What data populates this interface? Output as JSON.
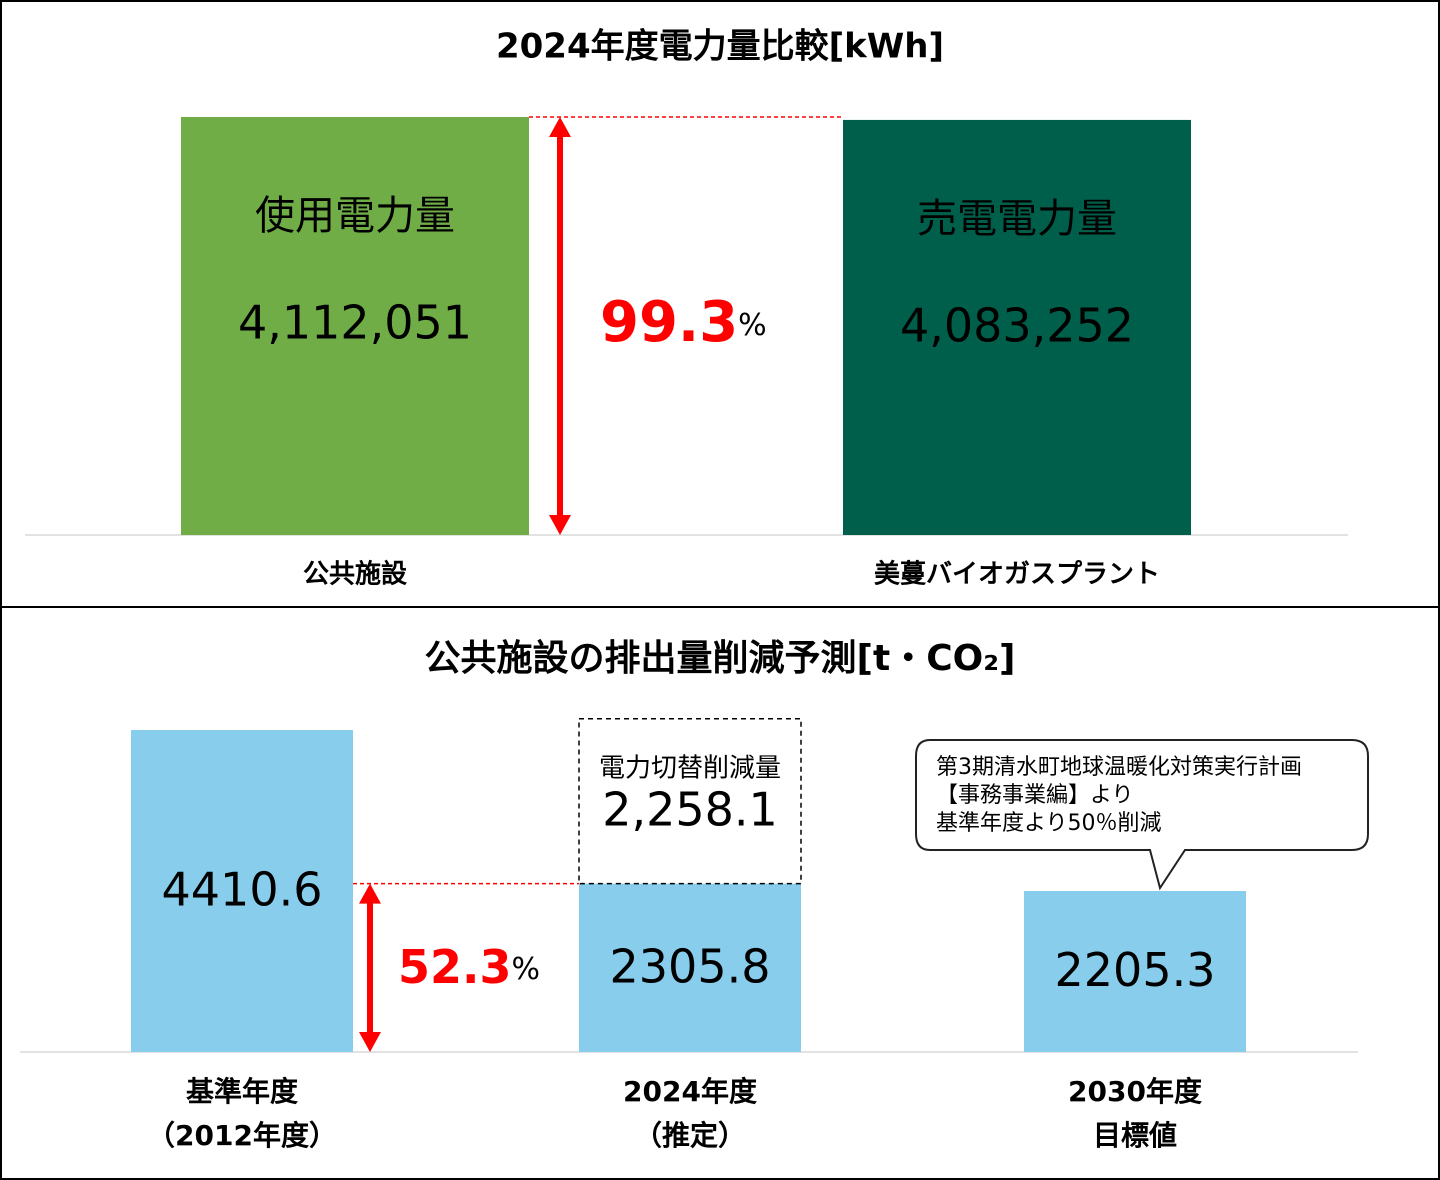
{
  "chart_data": [
    {
      "type": "bar",
      "title": "2024年度電力量比較[kWh]",
      "categories": [
        "公共施設",
        "美蔓バイオガスプラント"
      ],
      "bar_names": [
        "使用電力量",
        "売電電力量"
      ],
      "values": [
        4112051,
        4083252
      ],
      "value_labels": [
        "4,112,051",
        "4,083,252"
      ],
      "colors": [
        "#70ad47",
        "#005f4b"
      ],
      "label_colors": [
        "#000000",
        "#ffffff"
      ],
      "ratio": {
        "value": 99.3,
        "unit": "%"
      }
    },
    {
      "type": "bar",
      "title": "公共施設の排出量削減予測[t・CO₂]",
      "categories": [
        [
          "基準年度",
          "（2012年度）"
        ],
        [
          "2024年度",
          "（推定）"
        ],
        [
          "2030年度",
          "目標値"
        ]
      ],
      "values": [
        4410.6,
        2305.8,
        2205.3
      ],
      "colors": [
        "#88cdeb",
        "#88cdeb",
        "#88cdeb"
      ],
      "stack": {
        "name": "電力切替削減量",
        "values": [
          null,
          2258.1,
          null
        ],
        "value_labels": [
          null,
          "2,258.1",
          null
        ]
      },
      "ratio": {
        "value": 52.3,
        "unit": "%"
      },
      "callout": [
        "第3期清水町地球温暖化対策実行計画",
        "【事務事業編】より",
        "基準年度より50％削減"
      ]
    }
  ]
}
